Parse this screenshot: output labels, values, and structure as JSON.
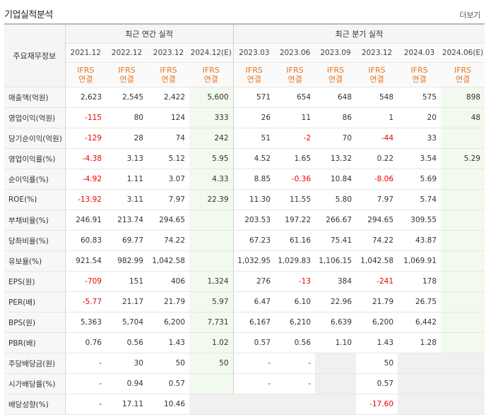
{
  "section_title": "기업실적분석",
  "more_link": "더보기",
  "header": {
    "row_label": "주요재무정보",
    "annual_title": "최근 연간 실적",
    "quarterly_title": "최근 분기 실적",
    "annual_periods": [
      "2021.12",
      "2022.12",
      "2023.12",
      "2024.12(E)"
    ],
    "quarterly_periods": [
      "2023.03",
      "2023.06",
      "2023.09",
      "2023.12",
      "2024.03",
      "2024.06(E)"
    ],
    "standard_top": "IFRS",
    "standard_bottom": "연결"
  },
  "rows": [
    {
      "label": "매출액(억원)",
      "values": [
        "2,623",
        "2,545",
        "2,422",
        "5,600",
        "571",
        "654",
        "648",
        "548",
        "575",
        "898"
      ]
    },
    {
      "label": "영업이익(억원)",
      "values": [
        "-115",
        "80",
        "124",
        "333",
        "26",
        "11",
        "86",
        "1",
        "20",
        "48"
      ]
    },
    {
      "label": "당기순이익(억원)",
      "values": [
        "-129",
        "28",
        "74",
        "242",
        "51",
        "-2",
        "70",
        "-44",
        "33",
        ""
      ]
    },
    {
      "label": "영업이익률(%)",
      "values": [
        "-4.38",
        "3.13",
        "5.12",
        "5.95",
        "4.52",
        "1.65",
        "13.32",
        "0.22",
        "3.54",
        "5.29"
      ]
    },
    {
      "label": "순이익률(%)",
      "values": [
        "-4.92",
        "1.11",
        "3.07",
        "4.33",
        "8.85",
        "-0.36",
        "10.84",
        "-8.06",
        "5.69",
        ""
      ]
    },
    {
      "label": "ROE(%)",
      "values": [
        "-13.92",
        "3.11",
        "7.97",
        "22.39",
        "11.30",
        "11.55",
        "5.80",
        "7.97",
        "5.74",
        ""
      ]
    },
    {
      "label": "부채비율(%)",
      "values": [
        "246.91",
        "213.74",
        "294.65",
        "",
        "203.53",
        "197.22",
        "266.67",
        "294.65",
        "309.55",
        ""
      ]
    },
    {
      "label": "당좌비율(%)",
      "values": [
        "60.83",
        "69.77",
        "74.22",
        "",
        "67.23",
        "61.16",
        "75.41",
        "74.22",
        "43.87",
        ""
      ]
    },
    {
      "label": "유보율(%)",
      "values": [
        "921.54",
        "982.99",
        "1,042.58",
        "",
        "1,032.95",
        "1,029.83",
        "1,106.15",
        "1,042.58",
        "1,069.91",
        ""
      ]
    },
    {
      "label": "EPS(원)",
      "values": [
        "-709",
        "151",
        "406",
        "1,324",
        "276",
        "-13",
        "384",
        "-241",
        "178",
        ""
      ]
    },
    {
      "label": "PER(배)",
      "values": [
        "-5.77",
        "21.17",
        "21.79",
        "5.97",
        "6.47",
        "6.10",
        "22.96",
        "21.79",
        "26.75",
        ""
      ]
    },
    {
      "label": "BPS(원)",
      "values": [
        "5,363",
        "5,704",
        "6,200",
        "7,731",
        "6,167",
        "6,210",
        "6,639",
        "6,200",
        "6,442",
        ""
      ]
    },
    {
      "label": "PBR(배)",
      "values": [
        "0.76",
        "0.56",
        "1.43",
        "1.02",
        "0.57",
        "0.56",
        "1.10",
        "1.43",
        "1.28",
        ""
      ]
    },
    {
      "label": "주당배당금(원)",
      "values": [
        "-",
        "30",
        "50",
        "50",
        "-",
        "-",
        "",
        "50",
        "",
        ""
      ]
    },
    {
      "label": "시가배당률(%)",
      "values": [
        "-",
        "0.94",
        "0.57",
        "",
        "-",
        "-",
        "",
        "0.57",
        "",
        ""
      ]
    },
    {
      "label": "배당성향(%)",
      "values": [
        "-",
        "17.11",
        "10.46",
        "",
        "",
        "",
        "",
        "-17.60",
        "",
        ""
      ]
    }
  ]
}
